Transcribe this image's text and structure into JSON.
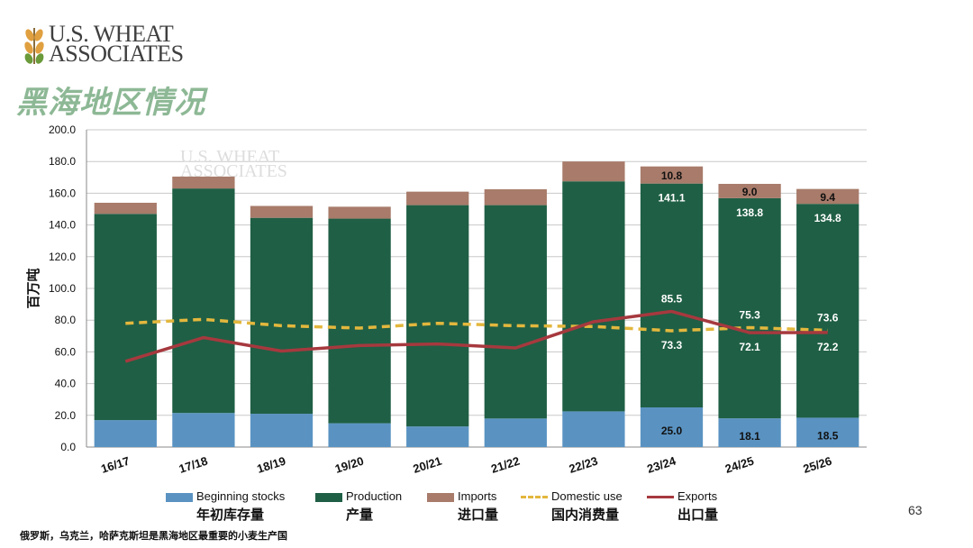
{
  "header": {
    "logo_line1": "U.S. WHEAT",
    "logo_line2": "ASSOCIATES",
    "title": "黑海地区情况"
  },
  "chart_data": {
    "type": "bar",
    "stacked": true,
    "categories": [
      "16/17",
      "17/18",
      "18/19",
      "19/20",
      "20/21",
      "21/22",
      "22/23",
      "23/24",
      "24/25",
      "25/26"
    ],
    "ylabel": "百万吨",
    "ylim": [
      0,
      200
    ],
    "yticks": [
      "0.0",
      "20.0",
      "40.0",
      "60.0",
      "80.0",
      "100.0",
      "120.0",
      "140.0",
      "160.0",
      "180.0",
      "200.0"
    ],
    "watermark_line1": "U.S. WHEAT",
    "watermark_line2": "ASSOCIATES",
    "series": [
      {
        "name": "Beginning stocks",
        "name_zh": "年初库存量",
        "kind": "bar",
        "color": "#5a93c2",
        "values": [
          17.0,
          21.5,
          21.0,
          15.0,
          13.0,
          18.0,
          22.5,
          25.0,
          18.1,
          18.5
        ]
      },
      {
        "name": "Production",
        "name_zh": "产量",
        "kind": "bar",
        "color": "#1f5f45",
        "values": [
          130.0,
          141.5,
          123.5,
          129.0,
          139.5,
          134.5,
          145.0,
          141.1,
          138.8,
          134.8
        ]
      },
      {
        "name": "Imports",
        "name_zh": "进口量",
        "kind": "bar",
        "color": "#a87b6a",
        "values": [
          7.0,
          7.5,
          7.5,
          7.5,
          8.5,
          10.0,
          12.5,
          10.8,
          9.0,
          9.4
        ]
      },
      {
        "name": "Domestic use",
        "name_zh": "国内消费量",
        "kind": "dashed-line",
        "color": "#e3b73d",
        "values": [
          78.0,
          80.5,
          76.5,
          75.0,
          78.0,
          76.5,
          76.0,
          73.3,
          75.3,
          73.6
        ]
      },
      {
        "name": "Exports",
        "name_zh": "出口量",
        "kind": "line",
        "color": "#a6393e",
        "values": [
          54.0,
          69.0,
          60.5,
          64.0,
          65.0,
          62.5,
          79.0,
          85.5,
          72.1,
          72.2
        ]
      }
    ],
    "data_labels": [
      {
        "category": "23/24",
        "series": "Beginning stocks",
        "text": "25.0"
      },
      {
        "category": "23/24",
        "series": "Production",
        "text": "141.1"
      },
      {
        "category": "23/24",
        "series": "Imports",
        "text": "10.8"
      },
      {
        "category": "23/24",
        "series": "Domestic use",
        "text": "73.3"
      },
      {
        "category": "23/24",
        "series": "Exports",
        "text": "85.5"
      },
      {
        "category": "24/25",
        "series": "Beginning stocks",
        "text": "18.1"
      },
      {
        "category": "24/25",
        "series": "Production",
        "text": "138.8"
      },
      {
        "category": "24/25",
        "series": "Imports",
        "text": "9.0"
      },
      {
        "category": "24/25",
        "series": "Domestic use",
        "text": "75.3"
      },
      {
        "category": "24/25",
        "series": "Exports",
        "text": "72.1"
      },
      {
        "category": "25/26",
        "series": "Beginning stocks",
        "text": "18.5"
      },
      {
        "category": "25/26",
        "series": "Production",
        "text": "134.8"
      },
      {
        "category": "25/26",
        "series": "Imports",
        "text": "9.4"
      },
      {
        "category": "25/26",
        "series": "Domestic use",
        "text": "73.6"
      },
      {
        "category": "25/26",
        "series": "Exports",
        "text": "72.2"
      }
    ]
  },
  "footer": {
    "page_number": "63",
    "footnote": "俄罗斯，乌克兰，哈萨克斯坦是黑海地区最重要的小麦生产国"
  }
}
